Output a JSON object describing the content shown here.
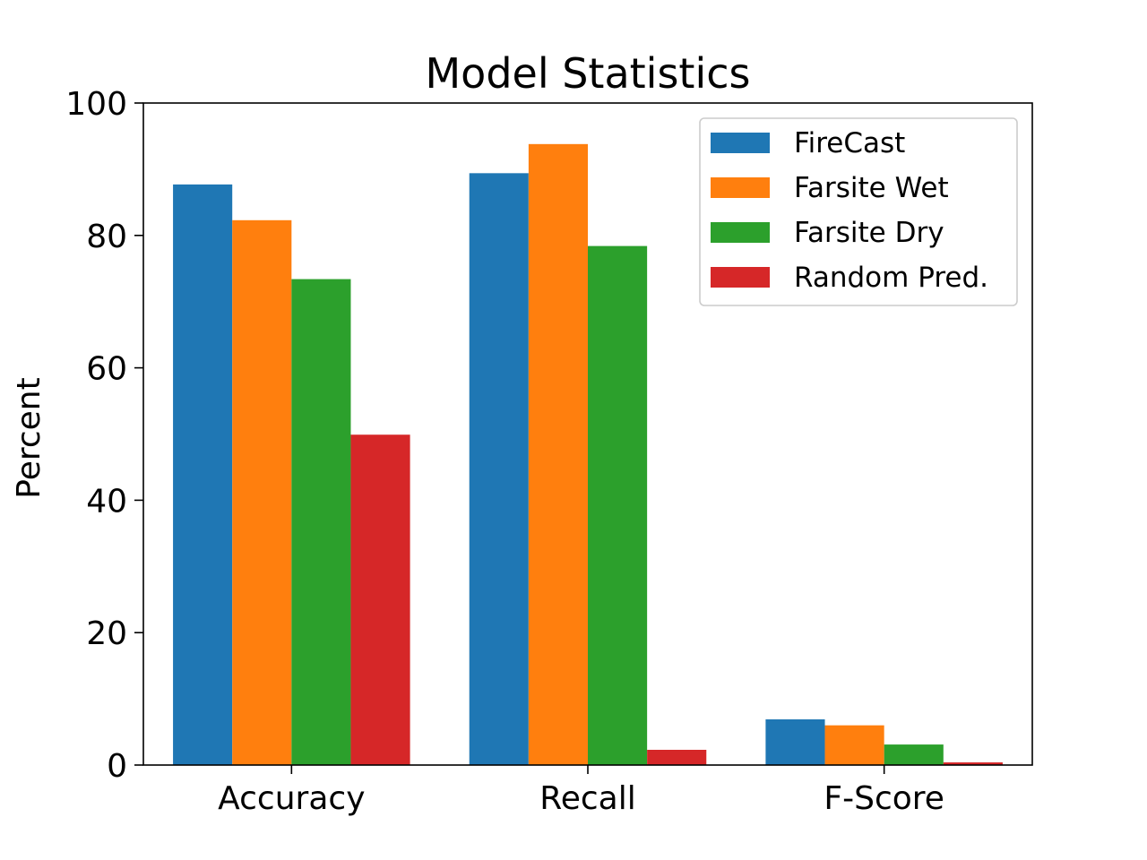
{
  "chart_data": {
    "type": "bar",
    "title": "Model Statistics",
    "xlabel": "",
    "ylabel": "Percent",
    "ylim": [
      0,
      100
    ],
    "yticks": [
      "0",
      "20",
      "40",
      "60",
      "80",
      "100"
    ],
    "categories": [
      "Accuracy",
      "Recall",
      "F-Score"
    ],
    "series": [
      {
        "name": "FireCast",
        "color": "#1f77b4",
        "values": [
          87.7,
          89.4,
          6.9
        ]
      },
      {
        "name": "Farsite Wet",
        "color": "#ff7f0e",
        "values": [
          82.3,
          93.8,
          6.0
        ]
      },
      {
        "name": "Farsite Dry",
        "color": "#2ca02c",
        "values": [
          73.4,
          78.4,
          3.1
        ]
      },
      {
        "name": "Random Pred.",
        "color": "#d62728",
        "values": [
          49.9,
          2.3,
          0.4
        ]
      }
    ],
    "legend": "top-right",
    "grid": false
  }
}
